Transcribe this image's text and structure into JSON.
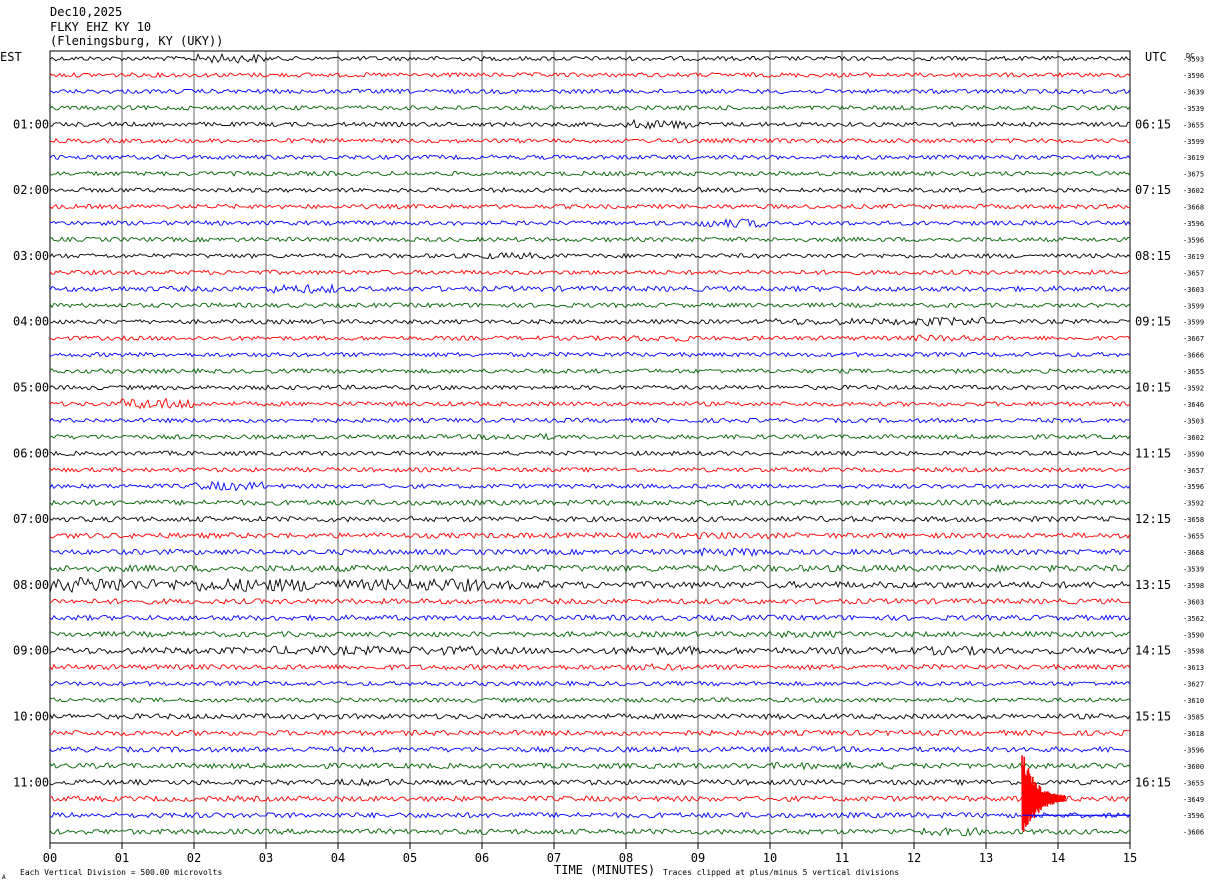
{
  "header": {
    "date": "Dec10,2025",
    "station": "FLKY EHZ KY 10",
    "location": "(Fleningsburg, KY (UKY))"
  },
  "labels": {
    "left_tz": "EST",
    "right_tz": "UTC",
    "right_corner": "DC",
    "x_axis_title": "TIME (MINUTES)",
    "footnote_left": "Each Vertical Division =  500.00 microvolts",
    "footnote_right": "Traces clipped at plus/minus 5 vertical divisions",
    "corner_mark": "A"
  },
  "colors": {
    "trace_cycle": [
      "#000000",
      "#ff0000",
      "#0000ff",
      "#006400"
    ],
    "grid": "#000000",
    "background": "#ffffff"
  },
  "chart_data": {
    "type": "line",
    "title": "",
    "xlabel": "TIME (MINUTES)",
    "ylabel": "",
    "xlim": [
      0,
      15
    ],
    "x_ticks": [
      "00",
      "01",
      "02",
      "03",
      "04",
      "05",
      "06",
      "07",
      "08",
      "09",
      "10",
      "11",
      "12",
      "13",
      "14",
      "15"
    ],
    "grid": true,
    "traces_per_hour": 4,
    "minutes_per_trace": 15,
    "left_hour_labels": [
      "01:00",
      "02:00",
      "03:00",
      "04:00",
      "05:00",
      "06:00",
      "07:00",
      "08:00",
      "09:00",
      "10:00",
      "11:00"
    ],
    "right_hour_labels": [
      "06:15",
      "07:15",
      "08:15",
      "09:15",
      "10:15",
      "11:15",
      "12:15",
      "13:15",
      "14:15",
      "15:15",
      "16:15"
    ],
    "trace_dc_offsets": [
      "-3593",
      "-3596",
      "-3639",
      "-3539",
      "-3655",
      "-3599",
      "-3619",
      "-3675",
      "-3602",
      "-3668",
      "-3596",
      "-3596",
      "-3619",
      "-3657",
      "-3603",
      "-3599",
      "-3599",
      "-3667",
      "-3666",
      "-3655",
      "-3592",
      "-3646",
      "-3503",
      "-3602",
      "-3590",
      "-3657",
      "-3596",
      "-3592",
      "-3658",
      "-3655",
      "-3668",
      "-3539",
      "-3598",
      "-3603",
      "-3562",
      "-3590",
      "-3598",
      "-3613",
      "-3627",
      "-3610",
      "-3585",
      "-3618",
      "-3596",
      "-3600",
      "-3655",
      "-3649",
      "-3596",
      "-3606"
    ],
    "series": [
      {
        "values": [
          1.0,
          1.0,
          2.0,
          1.0,
          1.0,
          1.0,
          1.0,
          1.0,
          1.0,
          1.0,
          1.0,
          1.0,
          1.0,
          1.0,
          1.0
        ]
      },
      {
        "values": [
          1.0,
          1.0,
          1.0,
          1.0,
          1.0,
          1.0,
          1.0,
          1.0,
          1.0,
          1.0,
          1.0,
          1.0,
          1.0,
          1.0,
          1.0
        ]
      },
      {
        "values": [
          1.0,
          1.0,
          1.0,
          1.0,
          1.0,
          1.0,
          1.0,
          1.0,
          1.0,
          1.0,
          1.0,
          1.0,
          1.0,
          1.0,
          1.0
        ]
      },
      {
        "values": [
          1.0,
          1.0,
          1.0,
          1.0,
          1.0,
          1.0,
          1.0,
          1.0,
          1.0,
          1.0,
          1.0,
          1.0,
          1.0,
          1.0,
          1.0
        ]
      },
      {
        "values": [
          1.0,
          1.0,
          1.0,
          1.0,
          1.0,
          1.0,
          1.0,
          1.0,
          2.0,
          1.0,
          1.0,
          1.0,
          1.0,
          1.0,
          1.0
        ]
      },
      {
        "values": [
          1.0,
          1.0,
          1.0,
          1.0,
          1.0,
          1.0,
          1.0,
          1.0,
          1.0,
          1.0,
          1.0,
          1.0,
          1.0,
          1.0,
          1.0
        ]
      },
      {
        "values": [
          1.0,
          1.0,
          1.0,
          1.0,
          1.0,
          1.0,
          1.0,
          1.0,
          1.0,
          1.0,
          1.0,
          1.0,
          1.0,
          1.0,
          1.0
        ]
      },
      {
        "values": [
          1.0,
          1.0,
          1.0,
          1.0,
          1.0,
          1.0,
          1.0,
          1.0,
          1.0,
          1.0,
          1.0,
          1.0,
          1.0,
          1.0,
          1.0
        ]
      },
      {
        "values": [
          1.0,
          1.0,
          1.0,
          1.0,
          1.0,
          1.0,
          1.0,
          1.0,
          1.0,
          1.0,
          1.0,
          1.0,
          1.0,
          1.0,
          1.0
        ]
      },
      {
        "values": [
          1.0,
          1.0,
          1.0,
          1.0,
          1.0,
          1.0,
          1.0,
          1.0,
          1.0,
          1.0,
          1.0,
          1.0,
          1.0,
          1.0,
          1.0
        ]
      },
      {
        "values": [
          1.0,
          1.0,
          1.0,
          1.0,
          1.0,
          1.0,
          1.0,
          1.0,
          1.0,
          2.0,
          1.0,
          1.0,
          1.0,
          1.0,
          1.0
        ]
      },
      {
        "values": [
          1.0,
          1.0,
          1.0,
          1.0,
          1.0,
          1.0,
          1.0,
          1.0,
          1.0,
          1.0,
          1.0,
          1.0,
          1.0,
          1.0,
          1.0
        ]
      },
      {
        "values": [
          1.0,
          1.0,
          1.0,
          1.0,
          1.0,
          1.0,
          1.5,
          1.0,
          1.0,
          1.0,
          1.0,
          1.0,
          1.0,
          1.0,
          1.0
        ]
      },
      {
        "values": [
          1.0,
          1.0,
          1.0,
          1.0,
          1.0,
          1.0,
          1.0,
          1.0,
          1.0,
          1.0,
          1.0,
          1.0,
          1.0,
          1.0,
          1.0
        ]
      },
      {
        "values": [
          1.2,
          1.2,
          1.2,
          2.0,
          1.2,
          1.2,
          1.2,
          1.2,
          1.2,
          1.2,
          1.2,
          1.2,
          1.2,
          1.2,
          1.2
        ]
      },
      {
        "values": [
          1.0,
          1.0,
          1.0,
          1.0,
          1.0,
          1.0,
          1.0,
          1.0,
          1.0,
          1.0,
          1.0,
          1.0,
          1.0,
          1.0,
          1.0
        ]
      },
      {
        "values": [
          1.0,
          1.0,
          1.0,
          1.0,
          1.0,
          1.0,
          1.0,
          1.0,
          1.0,
          1.0,
          1.5,
          1.5,
          2.0,
          1.0,
          1.0
        ]
      },
      {
        "values": [
          1.0,
          1.0,
          1.0,
          1.0,
          1.0,
          1.0,
          1.0,
          1.0,
          1.5,
          1.0,
          1.0,
          1.0,
          1.5,
          1.0,
          1.0
        ]
      },
      {
        "values": [
          1.0,
          1.0,
          1.0,
          1.0,
          1.0,
          1.0,
          1.0,
          1.0,
          1.0,
          1.0,
          1.0,
          1.0,
          1.0,
          1.0,
          1.0
        ]
      },
      {
        "values": [
          1.0,
          1.0,
          1.0,
          1.0,
          1.0,
          1.0,
          1.0,
          1.0,
          1.0,
          1.0,
          1.0,
          1.0,
          1.0,
          1.0,
          1.0
        ]
      },
      {
        "values": [
          1.0,
          1.0,
          1.0,
          1.0,
          1.0,
          1.0,
          1.0,
          1.0,
          1.0,
          1.0,
          1.0,
          1.0,
          1.0,
          1.0,
          1.0
        ]
      },
      {
        "values": [
          1.0,
          2.5,
          1.0,
          1.0,
          1.0,
          1.0,
          1.0,
          1.0,
          1.0,
          1.0,
          1.0,
          1.0,
          1.0,
          1.0,
          1.0
        ]
      },
      {
        "values": [
          1.0,
          1.0,
          1.0,
          1.0,
          1.0,
          1.0,
          1.0,
          1.0,
          1.0,
          1.0,
          1.0,
          1.0,
          1.0,
          1.0,
          1.0
        ]
      },
      {
        "values": [
          1.0,
          1.0,
          1.0,
          1.0,
          1.0,
          1.0,
          1.5,
          1.0,
          1.0,
          1.0,
          1.0,
          1.0,
          1.0,
          1.0,
          1.0
        ]
      },
      {
        "values": [
          1.0,
          1.0,
          1.0,
          1.0,
          1.0,
          1.0,
          1.0,
          1.0,
          1.0,
          1.0,
          1.0,
          1.0,
          1.0,
          1.0,
          1.0
        ]
      },
      {
        "values": [
          1.0,
          1.0,
          1.0,
          1.0,
          1.0,
          1.0,
          1.0,
          1.0,
          1.0,
          1.0,
          1.0,
          1.0,
          1.0,
          1.0,
          1.0
        ]
      },
      {
        "values": [
          1.0,
          1.0,
          2.0,
          1.0,
          1.0,
          1.0,
          1.0,
          1.0,
          1.0,
          1.0,
          1.0,
          1.0,
          1.0,
          1.0,
          1.0
        ]
      },
      {
        "values": [
          1.2,
          1.2,
          1.2,
          1.2,
          1.2,
          1.2,
          1.2,
          1.2,
          1.2,
          1.2,
          1.2,
          1.2,
          1.2,
          1.2,
          1.2
        ]
      },
      {
        "values": [
          1.2,
          1.2,
          1.2,
          1.2,
          1.2,
          1.2,
          1.2,
          1.2,
          1.2,
          1.2,
          1.2,
          1.2,
          1.2,
          1.2,
          1.2
        ]
      },
      {
        "values": [
          1.2,
          1.2,
          1.2,
          1.2,
          1.2,
          1.2,
          1.2,
          1.2,
          1.2,
          1.5,
          1.2,
          1.2,
          1.2,
          1.2,
          1.2
        ]
      },
      {
        "values": [
          1.2,
          1.2,
          1.2,
          1.2,
          1.2,
          1.2,
          1.2,
          1.2,
          1.2,
          1.8,
          1.2,
          1.2,
          1.2,
          1.2,
          1.2
        ]
      },
      {
        "values": [
          1.5,
          1.5,
          1.5,
          1.5,
          1.5,
          1.5,
          1.5,
          1.5,
          1.5,
          1.5,
          1.5,
          1.5,
          1.5,
          1.5,
          1.5
        ]
      },
      {
        "values": [
          3.5,
          2.5,
          3.0,
          3.0,
          2.5,
          3.0,
          2.0,
          1.5,
          1.5,
          1.5,
          1.5,
          1.5,
          1.5,
          1.5,
          1.5
        ]
      },
      {
        "values": [
          1.2,
          1.2,
          1.2,
          1.2,
          1.2,
          1.2,
          1.2,
          1.2,
          1.2,
          1.2,
          1.2,
          1.2,
          1.2,
          1.2,
          1.2
        ]
      },
      {
        "values": [
          1.2,
          1.2,
          1.2,
          1.2,
          1.2,
          1.2,
          1.2,
          1.2,
          1.2,
          1.2,
          1.2,
          1.2,
          1.2,
          1.2,
          1.2
        ]
      },
      {
        "values": [
          1.2,
          1.2,
          1.2,
          1.2,
          1.2,
          1.2,
          1.2,
          1.2,
          1.2,
          1.2,
          1.5,
          1.2,
          1.2,
          1.2,
          1.2
        ]
      },
      {
        "values": [
          1.5,
          1.5,
          1.5,
          2.0,
          2.0,
          2.0,
          1.5,
          1.5,
          2.0,
          1.5,
          1.5,
          1.5,
          2.0,
          1.5,
          1.5
        ]
      },
      {
        "values": [
          1.2,
          1.2,
          1.2,
          1.2,
          1.2,
          1.2,
          1.2,
          1.2,
          1.5,
          1.2,
          1.2,
          1.2,
          1.2,
          1.2,
          1.2
        ]
      },
      {
        "values": [
          1.0,
          1.0,
          1.0,
          1.0,
          1.0,
          1.0,
          1.0,
          1.0,
          1.0,
          1.0,
          1.0,
          1.0,
          1.0,
          1.0,
          1.0
        ]
      },
      {
        "values": [
          1.0,
          1.0,
          1.0,
          1.0,
          1.0,
          1.0,
          1.0,
          1.0,
          1.0,
          1.0,
          1.0,
          1.0,
          1.0,
          1.0,
          1.0
        ]
      },
      {
        "values": [
          1.2,
          1.2,
          1.2,
          1.2,
          1.2,
          1.2,
          1.2,
          1.2,
          1.2,
          1.2,
          1.2,
          1.2,
          1.2,
          1.2,
          1.2
        ]
      },
      {
        "values": [
          1.2,
          1.2,
          1.2,
          1.2,
          1.2,
          1.2,
          1.2,
          1.2,
          1.2,
          1.2,
          1.2,
          1.2,
          1.2,
          1.2,
          1.2
        ]
      },
      {
        "values": [
          1.2,
          1.2,
          1.2,
          1.2,
          1.2,
          1.2,
          1.2,
          1.2,
          1.2,
          1.2,
          1.2,
          1.2,
          1.2,
          1.2,
          1.2
        ]
      },
      {
        "values": [
          1.2,
          1.2,
          1.2,
          1.2,
          1.2,
          1.2,
          1.2,
          1.2,
          1.2,
          1.2,
          1.5,
          1.5,
          1.2,
          1.2,
          1.2
        ]
      },
      {
        "values": [
          1.2,
          1.2,
          1.2,
          1.2,
          1.5,
          1.2,
          1.2,
          1.2,
          1.2,
          1.2,
          1.2,
          1.2,
          1.2,
          1.2,
          1.2
        ]
      },
      {
        "values": [
          1.2,
          1.2,
          1.2,
          1.2,
          1.2,
          1.2,
          1.2,
          1.2,
          1.2,
          1.2,
          1.2,
          1.2,
          1.2,
          1.2,
          1.2
        ]
      },
      {
        "values": [
          1.2,
          1.2,
          1.2,
          1.2,
          1.2,
          1.2,
          1.2,
          1.2,
          1.2,
          1.2,
          1.2,
          1.2,
          1.2,
          1.2,
          1.2
        ]
      },
      {
        "values": [
          1.2,
          1.2,
          1.2,
          1.2,
          1.2,
          1.2,
          1.2,
          1.2,
          1.2,
          1.2,
          1.2,
          1.2,
          1.8,
          1.2,
          1.2
        ]
      }
    ],
    "events": [
      {
        "trace_index": 45,
        "start_minute": 13.5,
        "duration_minutes": 0.6,
        "peak_divisions": 5,
        "clipped": true
      }
    ]
  }
}
